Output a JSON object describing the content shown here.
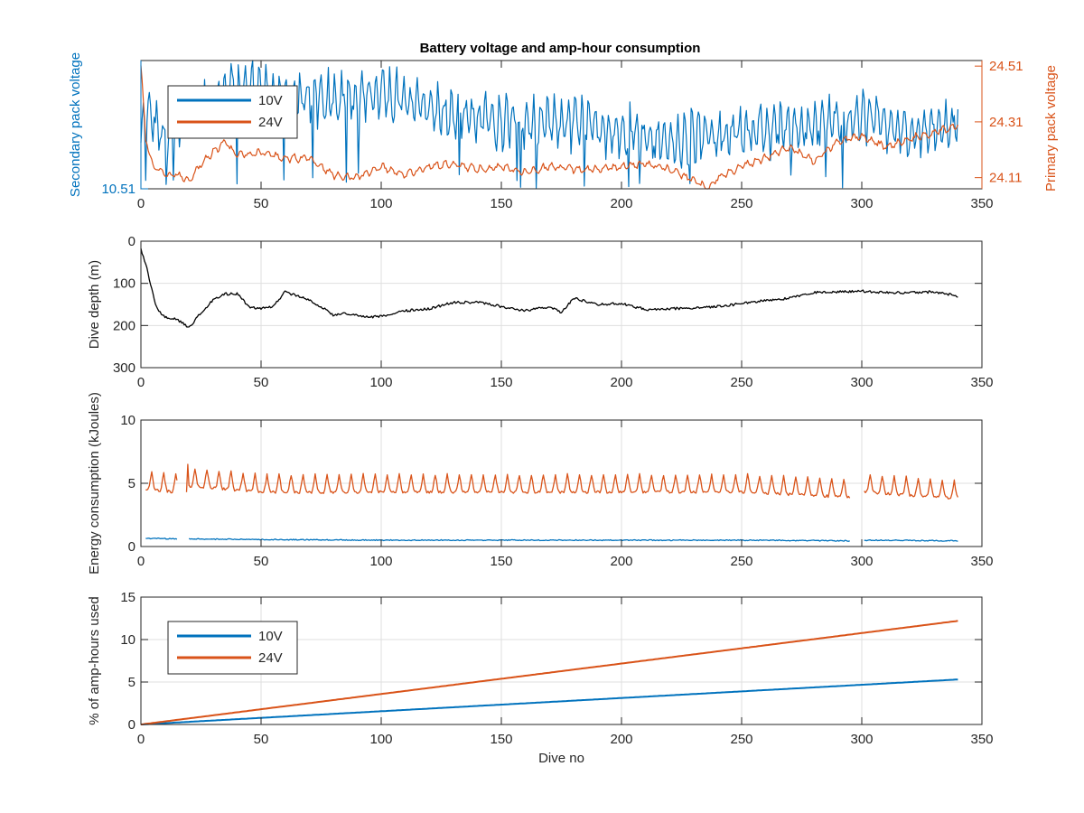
{
  "figure": {
    "title": "Battery voltage and amp-hour consumption",
    "xlabel": "Dive no"
  },
  "colors": {
    "blue": "#0072BD",
    "orange": "#D95319",
    "black": "#000000",
    "axis": "#262626",
    "grid": "#dfdfdf"
  },
  "chart_data": [
    {
      "type": "line",
      "title": "Battery voltage and amp-hour consumption",
      "xlim": [
        0,
        350
      ],
      "xticks": [
        0,
        50,
        100,
        150,
        200,
        250,
        300,
        350
      ],
      "ylabel_left": "Secondary pack voltage",
      "ylabel_right": "Primary pack voltage",
      "ylim_left": [
        10.51,
        10.75
      ],
      "yticks_left": [
        "10.51"
      ],
      "ylim_right": [
        24.07,
        24.53
      ],
      "yticks_right": [
        "24.51",
        "24.31",
        "24.11"
      ],
      "grid": false,
      "legend": {
        "placement": "top-left",
        "entries": [
          "10V",
          "24V"
        ]
      },
      "series": [
        {
          "name": "10V",
          "axis": "left",
          "color": "#0072BD",
          "style": "noisy-oscillating",
          "x": [
            0,
            2,
            5,
            10,
            20,
            30,
            40,
            60,
            80,
            100,
            120,
            140,
            160,
            180,
            200,
            220,
            240,
            260,
            280,
            300,
            320,
            340
          ],
          "y": [
            10.59,
            10.66,
            10.64,
            10.61,
            10.64,
            10.68,
            10.7,
            10.68,
            10.68,
            10.69,
            10.66,
            10.64,
            10.63,
            10.63,
            10.62,
            10.6,
            10.61,
            10.62,
            10.63,
            10.64,
            10.61,
            10.63
          ]
        },
        {
          "name": "24V",
          "axis": "right",
          "color": "#D95319",
          "style": "wavy",
          "x": [
            0,
            2,
            5,
            10,
            15,
            20,
            25,
            30,
            35,
            40,
            50,
            60,
            70,
            80,
            90,
            100,
            110,
            120,
            130,
            140,
            150,
            160,
            170,
            180,
            190,
            200,
            210,
            220,
            230,
            236,
            240,
            250,
            260,
            270,
            280,
            290,
            300,
            310,
            320,
            330,
            340
          ],
          "y": [
            24.51,
            24.25,
            24.15,
            24.12,
            24.12,
            24.1,
            24.16,
            24.2,
            24.24,
            24.19,
            24.2,
            24.18,
            24.18,
            24.12,
            24.11,
            24.15,
            24.12,
            24.15,
            24.16,
            24.14,
            24.15,
            24.13,
            24.15,
            24.14,
            24.14,
            24.15,
            24.16,
            24.14,
            24.1,
            24.07,
            24.11,
            24.15,
            24.18,
            24.22,
            24.17,
            24.24,
            24.26,
            24.22,
            24.25,
            24.27,
            24.3
          ]
        }
      ]
    },
    {
      "type": "line",
      "xlim": [
        0,
        350
      ],
      "xticks": [
        0,
        50,
        100,
        150,
        200,
        250,
        300,
        350
      ],
      "ylabel": "Dive depth (m)",
      "ylim": [
        300,
        0
      ],
      "yticks": [
        0,
        100,
        200,
        300
      ],
      "grid": true,
      "series": [
        {
          "color": "#000000",
          "x": [
            0,
            2,
            4,
            6,
            8,
            10,
            15,
            20,
            25,
            30,
            35,
            40,
            45,
            50,
            55,
            60,
            65,
            70,
            75,
            80,
            85,
            90,
            95,
            100,
            110,
            120,
            130,
            140,
            150,
            160,
            170,
            175,
            180,
            190,
            200,
            210,
            220,
            230,
            240,
            250,
            260,
            270,
            280,
            290,
            300,
            310,
            320,
            330,
            340
          ],
          "y": [
            20,
            55,
            100,
            150,
            170,
            180,
            185,
            205,
            170,
            140,
            125,
            125,
            155,
            160,
            155,
            120,
            130,
            140,
            155,
            175,
            172,
            175,
            180,
            178,
            165,
            160,
            145,
            145,
            155,
            165,
            155,
            170,
            135,
            150,
            148,
            162,
            160,
            158,
            155,
            148,
            140,
            135,
            122,
            120,
            118,
            122,
            122,
            120,
            130
          ]
        }
      ]
    },
    {
      "type": "line",
      "xlim": [
        0,
        350
      ],
      "xticks": [
        0,
        50,
        100,
        150,
        200,
        250,
        300,
        350
      ],
      "ylabel": "Energy consumption (kJoules)",
      "ylim": [
        0,
        10
      ],
      "yticks": [
        0,
        5,
        10
      ],
      "grid": true,
      "series": [
        {
          "color": "#D95319",
          "style": "periodic-spikes",
          "baseline": 4.3,
          "peak": 5.7,
          "spike_period": 5,
          "x": [
            2,
            15,
            19,
            20,
            50,
            100,
            150,
            200,
            250,
            295,
            301,
            340
          ],
          "y": [
            4.5,
            4.3,
            6.5,
            4.8,
            4.3,
            4.3,
            4.3,
            4.3,
            4.3,
            3.9,
            4.3,
            3.8
          ]
        },
        {
          "color": "#0072BD",
          "style": "flat-noisy",
          "x": [
            2,
            15,
            19,
            20,
            50,
            100,
            150,
            200,
            250,
            295,
            301,
            340
          ],
          "y": [
            0.65,
            0.6,
            0.75,
            0.6,
            0.55,
            0.5,
            0.5,
            0.5,
            0.5,
            0.45,
            0.5,
            0.45
          ]
        }
      ]
    },
    {
      "type": "line",
      "xlim": [
        0,
        350
      ],
      "xticks": [
        0,
        50,
        100,
        150,
        200,
        250,
        300,
        350
      ],
      "xlabel": "Dive no",
      "ylabel": "% of amp-hours used",
      "ylim": [
        0,
        15
      ],
      "yticks": [
        0,
        5,
        10,
        15
      ],
      "grid": true,
      "legend": {
        "placement": "top-left",
        "entries": [
          "10V",
          "24V"
        ]
      },
      "series": [
        {
          "name": "10V",
          "color": "#0072BD",
          "x": [
            0,
            340
          ],
          "y": [
            0,
            5.3
          ]
        },
        {
          "name": "24V",
          "color": "#D95319",
          "x": [
            0,
            340
          ],
          "y": [
            0,
            12.2
          ]
        }
      ]
    }
  ]
}
